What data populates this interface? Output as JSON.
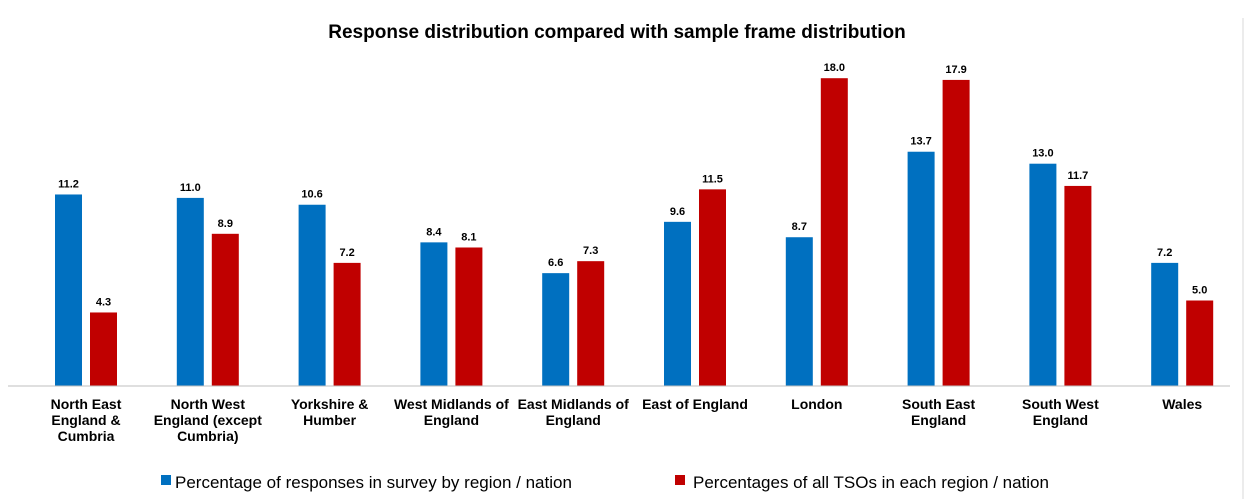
{
  "chart_data": {
    "type": "bar",
    "title": "Response distribution compared with sample frame distribution",
    "xlabel": "",
    "ylabel": "",
    "ylim": [
      0,
      20
    ],
    "grid": false,
    "legend_position": "bottom",
    "categories": [
      [
        "North East",
        "England &",
        "Cumbria"
      ],
      [
        "North West",
        "England (except",
        "Cumbria)"
      ],
      [
        "Yorkshire &",
        "Humber"
      ],
      [
        "West Midlands of",
        "England"
      ],
      [
        "East Midlands of",
        "England"
      ],
      [
        "East of England"
      ],
      [
        "London"
      ],
      [
        "South East",
        "England"
      ],
      [
        "South West",
        "England"
      ],
      [
        "Wales"
      ]
    ],
    "series": [
      {
        "name": "Percentage of responses in survey by region / nation",
        "color": "#0070c0",
        "values": [
          11.2,
          11.0,
          10.6,
          8.4,
          6.6,
          9.6,
          8.7,
          13.7,
          13.0,
          7.2
        ],
        "labels": [
          "11.2",
          "11.0",
          "10.6",
          "8.4",
          "6.6",
          "9.6",
          "8.7",
          "13.7",
          "13.0",
          "7.2"
        ]
      },
      {
        "name": "Percentages of all TSOs in each region / nation",
        "color": "#c00000",
        "values": [
          4.3,
          8.9,
          7.2,
          8.1,
          7.3,
          11.5,
          18.0,
          17.9,
          11.7,
          5.0
        ],
        "labels": [
          "4.3",
          "8.9",
          "7.2",
          "8.1",
          "7.3",
          "11.5",
          "18.0",
          "17.9",
          "11.7",
          "5.0"
        ]
      }
    ]
  }
}
